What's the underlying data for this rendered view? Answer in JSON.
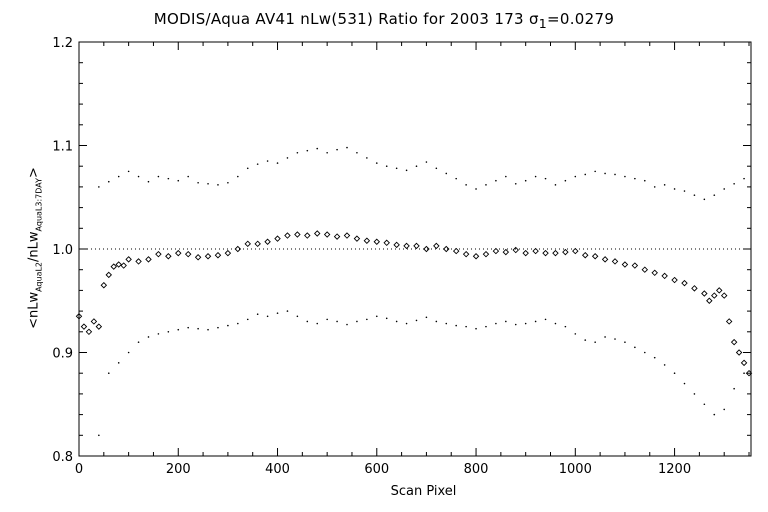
{
  "chart_data": {
    "type": "scatter",
    "title_prefix": "MODIS/Aqua AV41 nLw(531) Ratio for 2003 173 ",
    "title_sigma_sub": "1",
    "title_value": "=0.0279",
    "xlabel": "Scan Pixel",
    "ylabel": {
      "p1": "<nLw",
      "s1": "AquaL2",
      "p2": "/nLw",
      "s2": "AquaL3:7DAY",
      "p3": ">"
    },
    "xlim": [
      0,
      1354
    ],
    "ylim": [
      0.8,
      1.2
    ],
    "xticks": [
      0,
      200,
      400,
      600,
      800,
      1000,
      1200
    ],
    "yticks": [
      0.8,
      0.9,
      1.0,
      1.1,
      1.2
    ],
    "ytick_labels": [
      "0.8",
      "0.9",
      "1.0",
      "1.1",
      "1.2"
    ],
    "reference_line": 1.0,
    "series": [
      {
        "role": "mean",
        "marker": "diamond",
        "x": [
          0,
          10,
          20,
          30,
          40,
          50,
          60,
          70,
          80,
          90,
          100,
          120,
          140,
          160,
          180,
          200,
          220,
          240,
          260,
          280,
          300,
          320,
          340,
          360,
          380,
          400,
          420,
          440,
          460,
          480,
          500,
          520,
          540,
          560,
          580,
          600,
          620,
          640,
          660,
          680,
          700,
          720,
          740,
          760,
          780,
          800,
          820,
          840,
          860,
          880,
          900,
          920,
          940,
          960,
          980,
          1000,
          1020,
          1040,
          1060,
          1080,
          1100,
          1120,
          1140,
          1160,
          1180,
          1200,
          1220,
          1240,
          1260,
          1270,
          1280,
          1290,
          1300,
          1310,
          1320,
          1330,
          1340,
          1350
        ],
        "y": [
          0.935,
          0.925,
          0.92,
          0.93,
          0.925,
          0.965,
          0.975,
          0.983,
          0.985,
          0.984,
          0.99,
          0.988,
          0.99,
          0.995,
          0.993,
          0.996,
          0.995,
          0.992,
          0.993,
          0.994,
          0.996,
          1.0,
          1.005,
          1.005,
          1.007,
          1.01,
          1.013,
          1.014,
          1.013,
          1.015,
          1.014,
          1.012,
          1.013,
          1.01,
          1.008,
          1.007,
          1.006,
          1.004,
          1.003,
          1.003,
          1.0,
          1.003,
          1.0,
          0.998,
          0.995,
          0.993,
          0.995,
          0.998,
          0.997,
          0.999,
          0.996,
          0.998,
          0.996,
          0.996,
          0.997,
          0.998,
          0.994,
          0.993,
          0.99,
          0.988,
          0.985,
          0.984,
          0.98,
          0.977,
          0.974,
          0.97,
          0.967,
          0.962,
          0.957,
          0.95,
          0.955,
          0.96,
          0.955,
          0.93,
          0.91,
          0.9,
          0.89,
          0.88
        ]
      },
      {
        "role": "upper",
        "marker": "dot",
        "x": [
          40,
          60,
          80,
          100,
          120,
          140,
          160,
          180,
          200,
          220,
          240,
          260,
          280,
          300,
          320,
          340,
          360,
          380,
          400,
          420,
          440,
          460,
          480,
          500,
          520,
          540,
          560,
          580,
          600,
          620,
          640,
          660,
          680,
          700,
          720,
          740,
          760,
          780,
          800,
          820,
          840,
          860,
          880,
          900,
          920,
          940,
          960,
          980,
          1000,
          1020,
          1040,
          1060,
          1080,
          1100,
          1120,
          1140,
          1160,
          1180,
          1200,
          1220,
          1240,
          1260,
          1280,
          1300,
          1320,
          1340
        ],
        "y": [
          1.06,
          1.065,
          1.07,
          1.075,
          1.07,
          1.065,
          1.07,
          1.068,
          1.066,
          1.07,
          1.064,
          1.063,
          1.062,
          1.064,
          1.07,
          1.078,
          1.082,
          1.085,
          1.083,
          1.088,
          1.093,
          1.095,
          1.097,
          1.093,
          1.096,
          1.098,
          1.093,
          1.088,
          1.083,
          1.08,
          1.078,
          1.076,
          1.08,
          1.084,
          1.078,
          1.073,
          1.068,
          1.062,
          1.058,
          1.062,
          1.066,
          1.07,
          1.063,
          1.066,
          1.07,
          1.068,
          1.062,
          1.066,
          1.07,
          1.072,
          1.075,
          1.073,
          1.072,
          1.07,
          1.068,
          1.066,
          1.06,
          1.062,
          1.058,
          1.056,
          1.052,
          1.048,
          1.052,
          1.058,
          1.063,
          1.068
        ]
      },
      {
        "role": "lower",
        "marker": "dot",
        "x": [
          40,
          60,
          80,
          100,
          120,
          140,
          160,
          180,
          200,
          220,
          240,
          260,
          280,
          300,
          320,
          340,
          360,
          380,
          400,
          420,
          440,
          460,
          480,
          500,
          520,
          540,
          560,
          580,
          600,
          620,
          640,
          660,
          680,
          700,
          720,
          740,
          760,
          780,
          800,
          820,
          840,
          860,
          880,
          900,
          920,
          940,
          960,
          980,
          1000,
          1020,
          1040,
          1060,
          1080,
          1100,
          1120,
          1140,
          1160,
          1180,
          1200,
          1220,
          1240,
          1260,
          1280,
          1300,
          1320,
          1340
        ],
        "y": [
          0.82,
          0.88,
          0.89,
          0.9,
          0.91,
          0.915,
          0.918,
          0.92,
          0.922,
          0.924,
          0.923,
          0.922,
          0.924,
          0.926,
          0.928,
          0.932,
          0.937,
          0.935,
          0.938,
          0.94,
          0.935,
          0.93,
          0.928,
          0.932,
          0.93,
          0.927,
          0.93,
          0.932,
          0.935,
          0.933,
          0.93,
          0.928,
          0.931,
          0.934,
          0.93,
          0.928,
          0.926,
          0.925,
          0.923,
          0.925,
          0.928,
          0.93,
          0.927,
          0.928,
          0.93,
          0.932,
          0.928,
          0.925,
          0.918,
          0.912,
          0.91,
          0.915,
          0.913,
          0.91,
          0.905,
          0.9,
          0.895,
          0.888,
          0.88,
          0.87,
          0.86,
          0.85,
          0.84,
          0.845,
          0.865,
          0.88
        ]
      }
    ]
  }
}
